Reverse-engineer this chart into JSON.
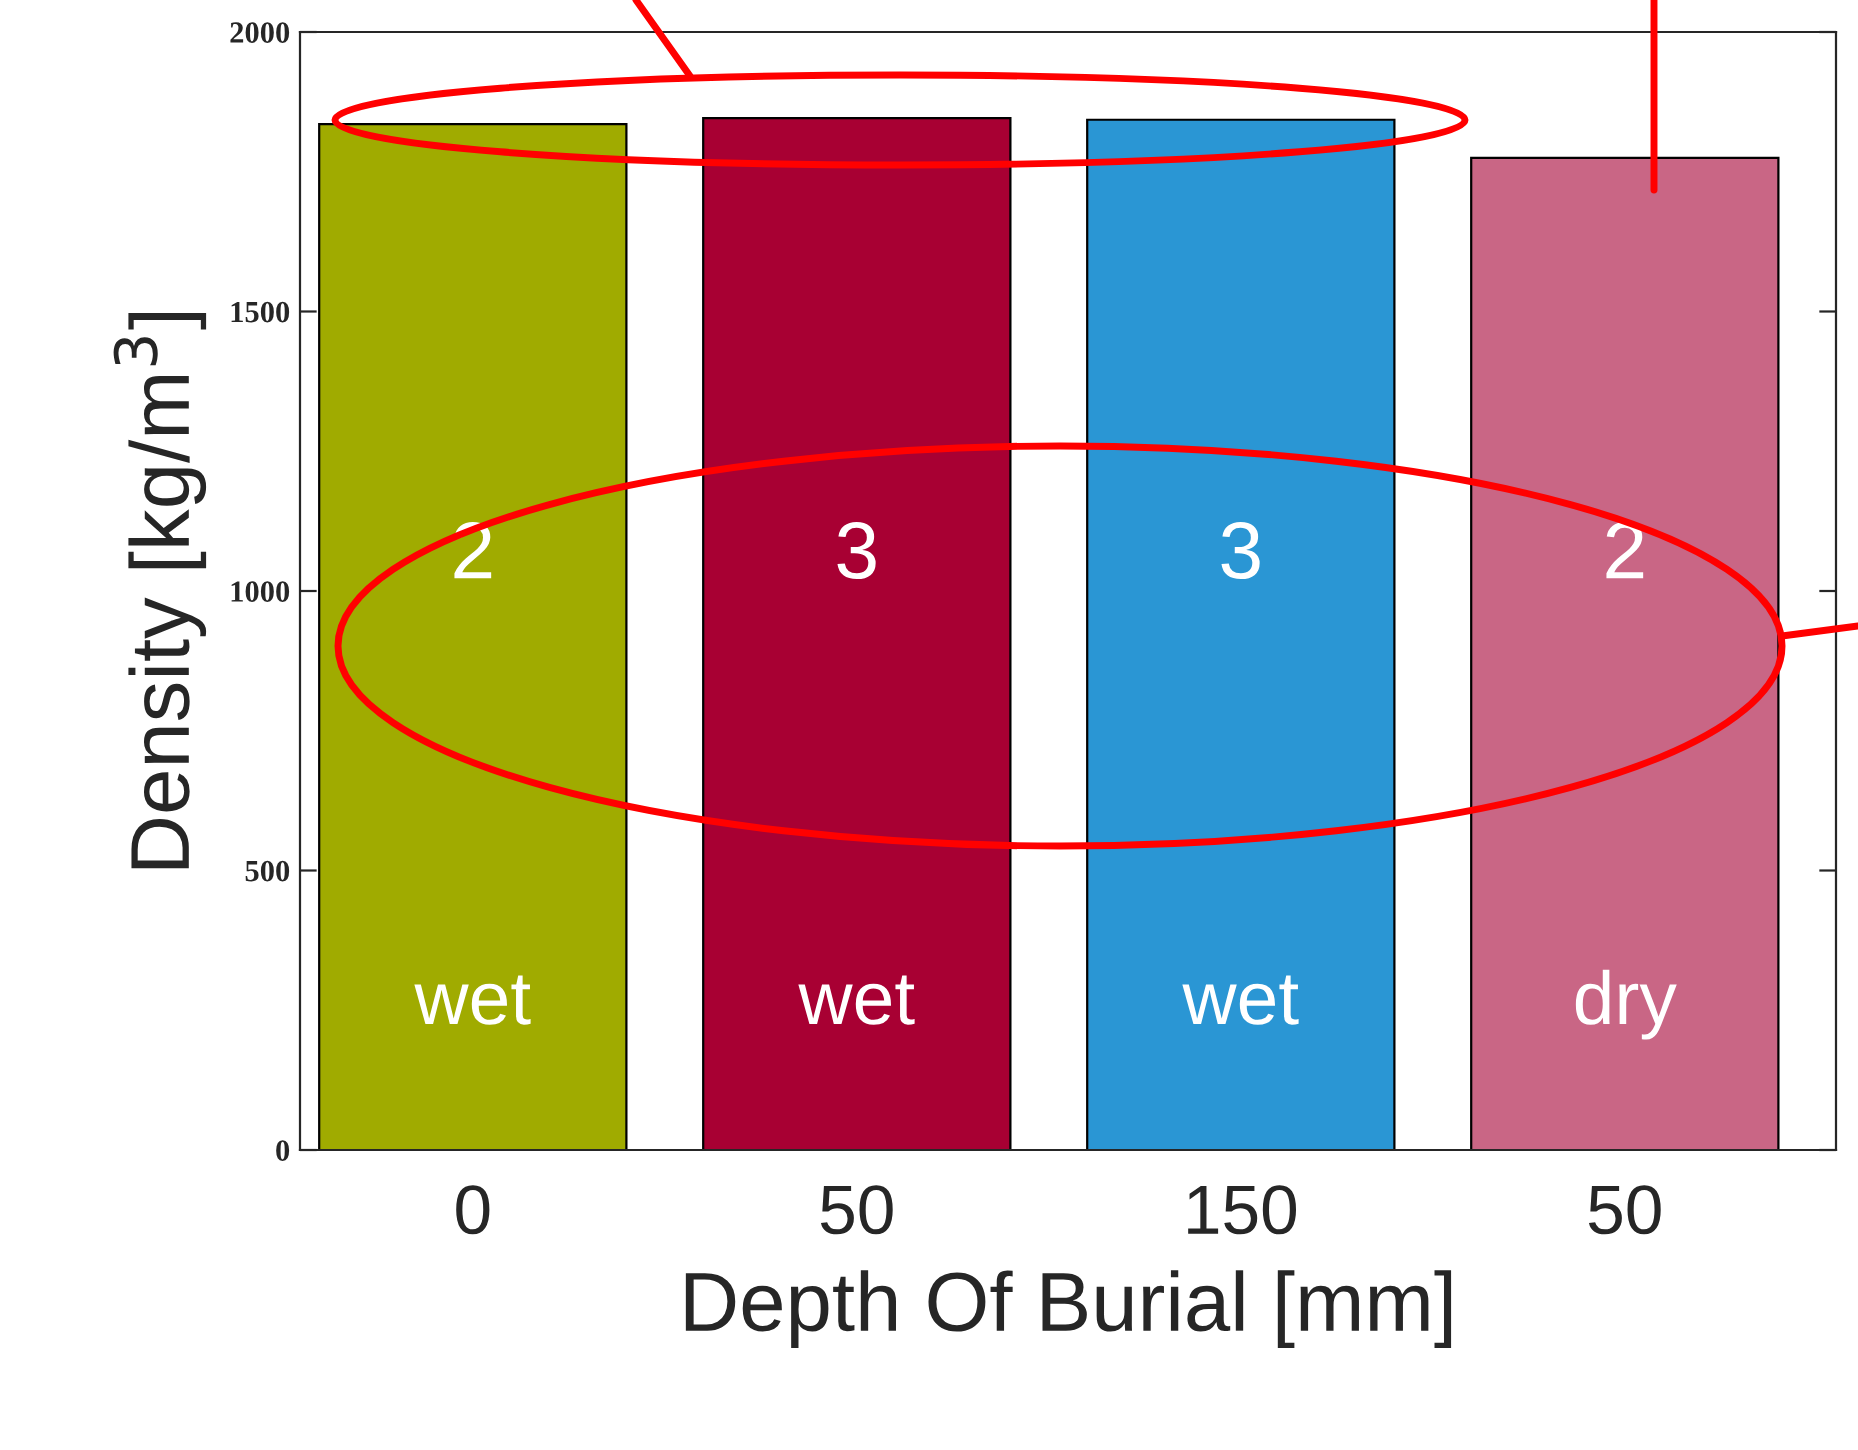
{
  "chart_data": {
    "type": "bar",
    "xlabel": "Depth Of Burial [mm]",
    "ylabel": "Density [kg/m$^{3}$]",
    "categories": [
      "0",
      "50",
      "150",
      "50"
    ],
    "values": [
      1835,
      1846,
      1843,
      1775
    ],
    "colors": [
      "#a0ab00",
      "#a80033",
      "#2a96d4",
      "#c96685"
    ],
    "ylim": [
      0,
      2000
    ],
    "yticks": [
      0,
      500,
      1000,
      1500,
      2000
    ],
    "annotations": [
      "2",
      "3",
      "3",
      "2",
      "wet",
      "wet",
      "wet",
      "dry"
    ]
  }
}
